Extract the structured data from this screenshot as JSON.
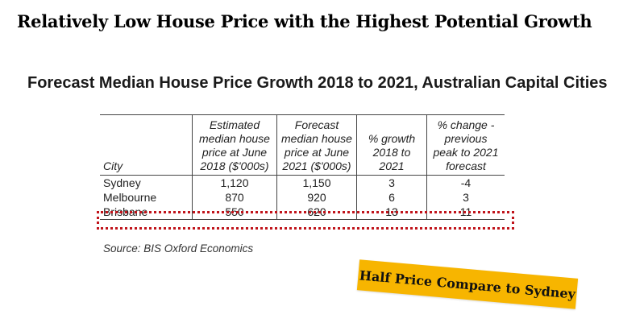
{
  "headline": "Relatively Low House Price with the Highest Potential Growth",
  "table_title": "Forecast Median House Price Growth 2018 to 2021, Australian Capital Cities",
  "columns": {
    "city": "City",
    "estimated": [
      "Estimated",
      "median house",
      "price at June",
      "2018 ($'000s)"
    ],
    "forecast": [
      "Forecast",
      "median house",
      "price at June",
      "2021 ($'000s)"
    ],
    "growth": [
      "% growth",
      "2018 to",
      "2021"
    ],
    "change": [
      "% change -",
      "previous",
      "peak to 2021",
      "forecast"
    ]
  },
  "rows": [
    {
      "city": "Sydney",
      "estimated": "1,120",
      "forecast": "1,150",
      "growth": "3",
      "change": "-4"
    },
    {
      "city": "Melbourne",
      "estimated": "870",
      "forecast": "920",
      "growth": "6",
      "change": "3"
    },
    {
      "city": "Brisbane",
      "estimated": "550",
      "forecast": "620",
      "growth": "13",
      "change": "11"
    }
  ],
  "source": "Source: BIS Oxford Economics",
  "callout": "Half Price Compare to Sydney",
  "colors": {
    "highlight": "#c0141b",
    "callout_bg": "#f7b500"
  }
}
